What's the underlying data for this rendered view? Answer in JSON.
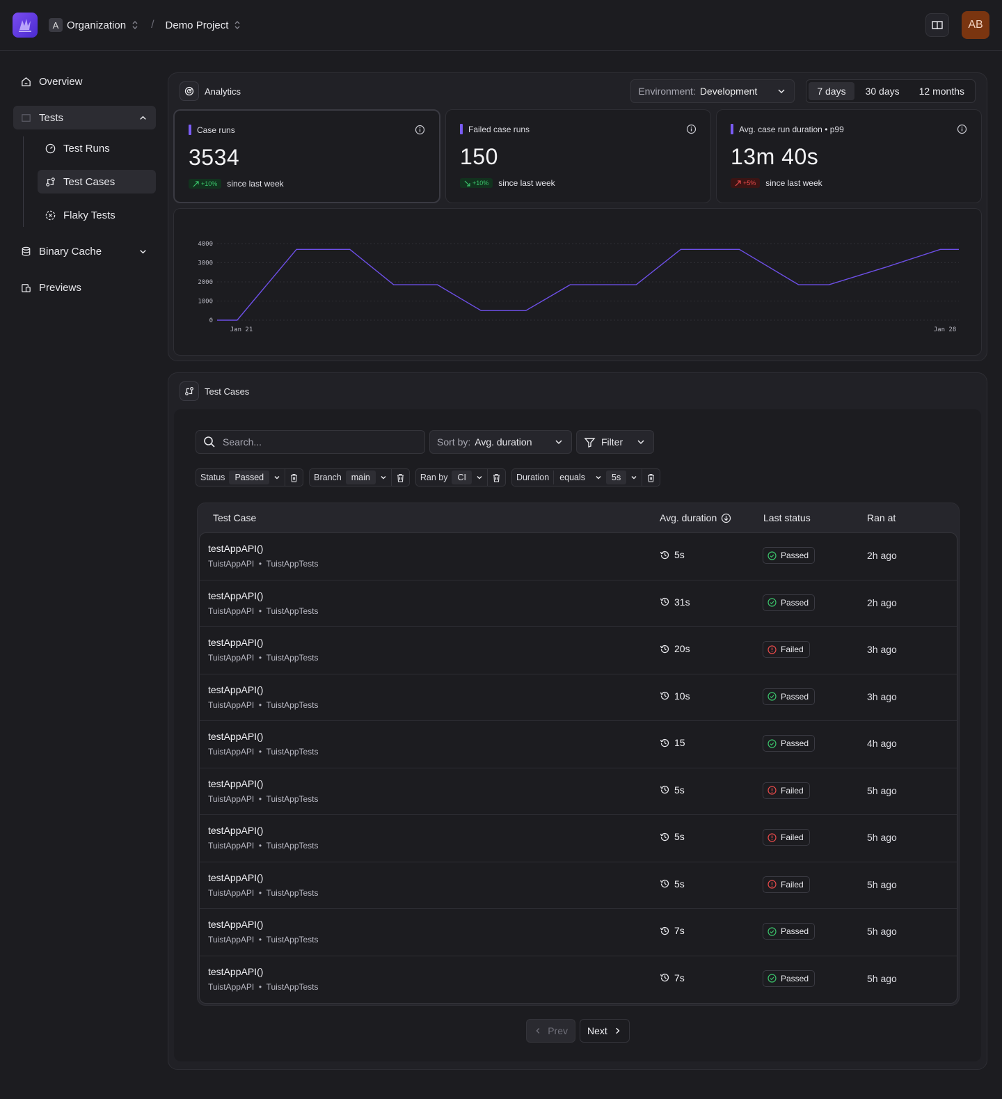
{
  "topbar": {
    "org_initial": "A",
    "org_name": "Organization",
    "project_name": "Demo Project",
    "user_initials": "AB"
  },
  "sidebar": {
    "overview": "Overview",
    "tests": "Tests",
    "test_runs": "Test Runs",
    "test_cases": "Test Cases",
    "flaky_tests": "Flaky Tests",
    "binary_cache": "Binary Cache",
    "previews": "Previews"
  },
  "analytics": {
    "title": "Analytics",
    "env_label": "Environment:",
    "env_value": "Development",
    "ranges": [
      "7 days",
      "30 days",
      "12 months"
    ],
    "selected_range": "7 days",
    "metrics": [
      {
        "label": "Case runs",
        "value": "3534",
        "delta": "+10%",
        "delta_dir": "up",
        "delta_color": "#3bc46b",
        "suffix": "since last week"
      },
      {
        "label": "Failed case runs",
        "value": "150",
        "delta": "+10%",
        "delta_dir": "down",
        "delta_color": "#3bc46b",
        "suffix": "since last week"
      },
      {
        "label": "Avg. case run duration • p99",
        "value": "13m 40s",
        "delta": "+5%",
        "delta_dir": "up",
        "delta_color": "#e84a4a",
        "suffix": "since last week"
      }
    ]
  },
  "chart_data": {
    "type": "line",
    "x_tick_labels": [
      "Jan 21",
      "Jan 28"
    ],
    "y_ticks": [
      0,
      1000,
      2000,
      3000,
      4000
    ],
    "ylim": [
      0,
      4000
    ],
    "grid": true,
    "line_color": "#6d4fe6",
    "series": [
      {
        "values": [
          0,
          0,
          3700,
          3700,
          1850,
          1850,
          500,
          500,
          1850,
          1850,
          3700,
          3700,
          1850,
          1850,
          2750,
          3700,
          3700
        ]
      }
    ],
    "x_positions": [
      0,
      0.027,
      0.107,
      0.179,
      0.238,
      0.297,
      0.356,
      0.416,
      0.476,
      0.565,
      0.625,
      0.704,
      0.784,
      0.825,
      0.9,
      0.975,
      1.0
    ]
  },
  "test_cases": {
    "title": "Test Cases",
    "search_placeholder": "Search...",
    "sort_label": "Sort by:",
    "sort_value": "Avg. duration",
    "filter_label": "Filter",
    "filters": [
      {
        "key": "Status",
        "op": "",
        "value": "Passed"
      },
      {
        "key": "Branch",
        "op": "",
        "value": "main"
      },
      {
        "key": "Ran by",
        "op": "",
        "value": "CI"
      },
      {
        "key": "Duration",
        "op": "equals",
        "value": "5s"
      }
    ],
    "columns": {
      "case": "Test Case",
      "duration": "Avg. duration",
      "status": "Last status",
      "ran": "Ran at"
    },
    "rows": [
      {
        "name": "testAppAPI()",
        "module": "TuistAppAPI",
        "suite": "TuistAppTests",
        "duration": "5s",
        "status": "Passed",
        "ran": "2h ago"
      },
      {
        "name": "testAppAPI()",
        "module": "TuistAppAPI",
        "suite": "TuistAppTests",
        "duration": "31s",
        "status": "Passed",
        "ran": "2h ago"
      },
      {
        "name": "testAppAPI()",
        "module": "TuistAppAPI",
        "suite": "TuistAppTests",
        "duration": "20s",
        "status": "Failed",
        "ran": "3h ago"
      },
      {
        "name": "testAppAPI()",
        "module": "TuistAppAPI",
        "suite": "TuistAppTests",
        "duration": "10s",
        "status": "Passed",
        "ran": "3h ago"
      },
      {
        "name": "testAppAPI()",
        "module": "TuistAppAPI",
        "suite": "TuistAppTests",
        "duration": "15",
        "status": "Passed",
        "ran": "4h ago"
      },
      {
        "name": "testAppAPI()",
        "module": "TuistAppAPI",
        "suite": "TuistAppTests",
        "duration": "5s",
        "status": "Failed",
        "ran": "5h ago"
      },
      {
        "name": "testAppAPI()",
        "module": "TuistAppAPI",
        "suite": "TuistAppTests",
        "duration": "5s",
        "status": "Failed",
        "ran": "5h ago"
      },
      {
        "name": "testAppAPI()",
        "module": "TuistAppAPI",
        "suite": "TuistAppTests",
        "duration": "5s",
        "status": "Failed",
        "ran": "5h ago"
      },
      {
        "name": "testAppAPI()",
        "module": "TuistAppAPI",
        "suite": "TuistAppTests",
        "duration": "7s",
        "status": "Passed",
        "ran": "5h ago"
      },
      {
        "name": "testAppAPI()",
        "module": "TuistAppAPI",
        "suite": "TuistAppTests",
        "duration": "7s",
        "status": "Passed",
        "ran": "5h ago"
      }
    ],
    "pagination": {
      "prev": "Prev",
      "next": "Next"
    }
  }
}
